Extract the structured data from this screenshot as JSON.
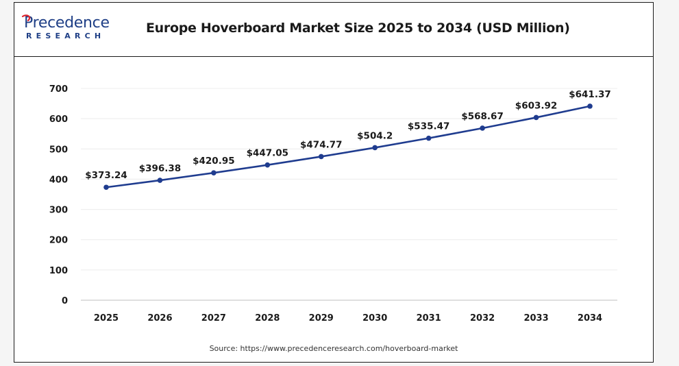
{
  "header": {
    "logo_word": "Precedence",
    "logo_sub": "RESEARCH",
    "title": "Europe Hoverboard Market Size 2025 to 2034 (USD Million)"
  },
  "footer": {
    "source": "Source: https://www.precedenceresearch.com/hoverboard-market"
  },
  "colors": {
    "series": "#1f3c8f",
    "brand": "#1f3f86",
    "accent": "#e0262f"
  },
  "chart_data": {
    "type": "line",
    "title": "Europe Hoverboard Market Size 2025 to 2034 (USD Million)",
    "x": [
      "2025",
      "2026",
      "2027",
      "2028",
      "2029",
      "2030",
      "2031",
      "2032",
      "2033",
      "2034"
    ],
    "series": [
      {
        "values": [
          373.24,
          396.38,
          420.95,
          447.05,
          474.77,
          504.2,
          535.47,
          568.67,
          603.92,
          641.37
        ],
        "labels": [
          "$373.24",
          "$396.38",
          "$420.95",
          "$447.05",
          "$474.77",
          "$504.2",
          "$535.47",
          "$568.67",
          "$603.92",
          "$641.37"
        ]
      }
    ],
    "ylim": [
      0,
      700
    ],
    "yticks": [
      0,
      100,
      200,
      300,
      400,
      500,
      600,
      700
    ],
    "grid": true,
    "legend": "none"
  }
}
